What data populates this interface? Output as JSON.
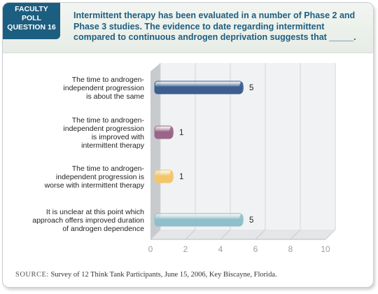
{
  "header": {
    "badge_lines": [
      "FACULTY",
      "POLL",
      "QUESTION 16"
    ],
    "question": "Intermittent therapy has been evaluated in a number of Phase 2 and Phase 3 studies. The evidence to date regarding intermittent compared to continuous androgen deprivation suggests that _____."
  },
  "footer": {
    "source_label": "SOURCE:",
    "source_text": "Survey of 12 Think Tank Participants, June 15, 2006, Key Biscayne, Florida."
  },
  "chart_data": {
    "type": "bar",
    "orientation": "horizontal",
    "categories": [
      [
        "The time to androgen-",
        "independent progression",
        "is about the same"
      ],
      [
        "The time to androgen-",
        "independent progression",
        "is improved with",
        "intermittent therapy"
      ],
      [
        "The time to androgen-",
        "independent progression is",
        "worse with intermittent therapy"
      ],
      [
        "It is unclear at this point which",
        "approach offers improved duration",
        "of androgen dependence"
      ]
    ],
    "values": [
      5,
      1,
      1,
      5
    ],
    "bar_colors": [
      "#3d5f8f",
      "#9a6688",
      "#f3c66a",
      "#8fbfca"
    ],
    "xlim": [
      0,
      10
    ],
    "xticks": [
      0,
      2,
      4,
      6,
      8,
      10
    ],
    "grid": true
  }
}
